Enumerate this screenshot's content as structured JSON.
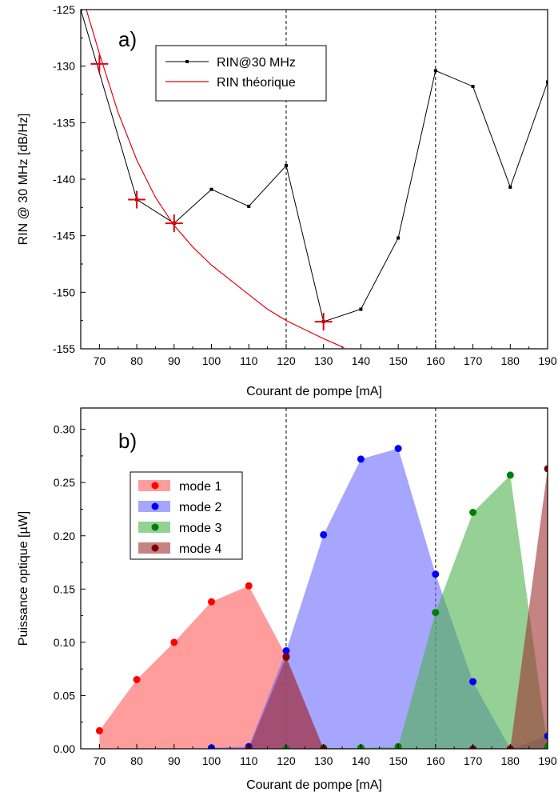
{
  "chart_data": [
    {
      "type": "line",
      "panel_label": "a)",
      "xlabel": "Courant de pompe [mA]",
      "ylabel": "RIN @ 30 MHz [dB/Hz]",
      "xlim": [
        65,
        190
      ],
      "ylim": [
        -155,
        -125
      ],
      "xticks": [
        70,
        80,
        90,
        100,
        110,
        120,
        130,
        140,
        150,
        160,
        170,
        180,
        190
      ],
      "yticks": [
        -155,
        -150,
        -145,
        -140,
        -135,
        -130,
        -125
      ],
      "grid": false,
      "legend_position": "top-center",
      "vlines": [
        120,
        160
      ],
      "series": [
        {
          "name": "RIN@30 MHz",
          "color": "#000000",
          "marker": "square",
          "x": [
            65,
            80,
            90,
            100,
            110,
            120,
            130,
            140,
            150,
            160,
            170,
            180,
            190
          ],
          "y": [
            -125,
            -141.8,
            -143.9,
            -140.9,
            -142.4,
            -138.8,
            -152.6,
            -151.5,
            -145.2,
            -130.4,
            -131.8,
            -140.7,
            -131.4
          ]
        },
        {
          "name": "RIN théorique",
          "color": "#e8000b",
          "marker": "none",
          "x": [
            66.5,
            70,
            75,
            80,
            85,
            90,
            95,
            100,
            105,
            110,
            115,
            120,
            125,
            130,
            135.5
          ],
          "y": [
            -125,
            -128.9,
            -134.1,
            -138.3,
            -141.6,
            -144.1,
            -146.0,
            -147.6,
            -148.9,
            -150.2,
            -151.5,
            -152.5,
            -153.3,
            -154.1,
            -154.9
          ]
        },
        {
          "name": "",
          "color": "#e8000b",
          "marker": "plus",
          "x": [
            70,
            80,
            90,
            130
          ],
          "y": [
            -129.8,
            -141.8,
            -143.9,
            -152.6
          ]
        }
      ]
    },
    {
      "type": "area",
      "panel_label": "b)",
      "xlabel": "Courant de pompe [mA]",
      "ylabel": "Puissance optique [µW]",
      "xlim": [
        65,
        190
      ],
      "ylim": [
        0,
        0.32
      ],
      "xticks": [
        70,
        80,
        90,
        100,
        110,
        120,
        130,
        140,
        150,
        160,
        170,
        180,
        190
      ],
      "yticks": [
        0.0,
        0.05,
        0.1,
        0.15,
        0.2,
        0.25,
        0.3
      ],
      "ytick_labels": [
        "0.00",
        "0.05",
        "0.10",
        "0.15",
        "0.20",
        "0.25",
        "0.30"
      ],
      "grid": false,
      "legend_position": "center-left",
      "vlines": [
        120,
        160
      ],
      "series": [
        {
          "name": "mode 1",
          "color": "#ff0000",
          "fill": "#ff5a5a",
          "x": [
            70,
            80,
            90,
            100,
            110,
            120,
            130
          ],
          "y": [
            0.017,
            0.065,
            0.1,
            0.138,
            0.153,
            0.087,
            0.0
          ]
        },
        {
          "name": "mode 2",
          "color": "#0000ff",
          "fill": "#6b6bff",
          "x": [
            100,
            110,
            120,
            130,
            140,
            150,
            160,
            170,
            180,
            190
          ],
          "y": [
            0.001,
            0.002,
            0.092,
            0.201,
            0.272,
            0.282,
            0.164,
            0.063,
            0.0,
            0.012
          ]
        },
        {
          "name": "mode 3",
          "color": "#008000",
          "fill": "#4fb04f",
          "x": [
            110,
            120,
            130,
            140,
            150,
            160,
            170,
            180,
            190
          ],
          "y": [
            0.0,
            0.0,
            0.001,
            0.001,
            0.002,
            0.128,
            0.222,
            0.257,
            0.002
          ]
        },
        {
          "name": "mode 4",
          "color": "#800000",
          "fill": "#a03030",
          "x": [
            110,
            120,
            130,
            170,
            180,
            190
          ],
          "y": [
            0.0,
            0.086,
            0.0,
            0.0,
            0.0,
            0.263
          ]
        }
      ]
    }
  ]
}
